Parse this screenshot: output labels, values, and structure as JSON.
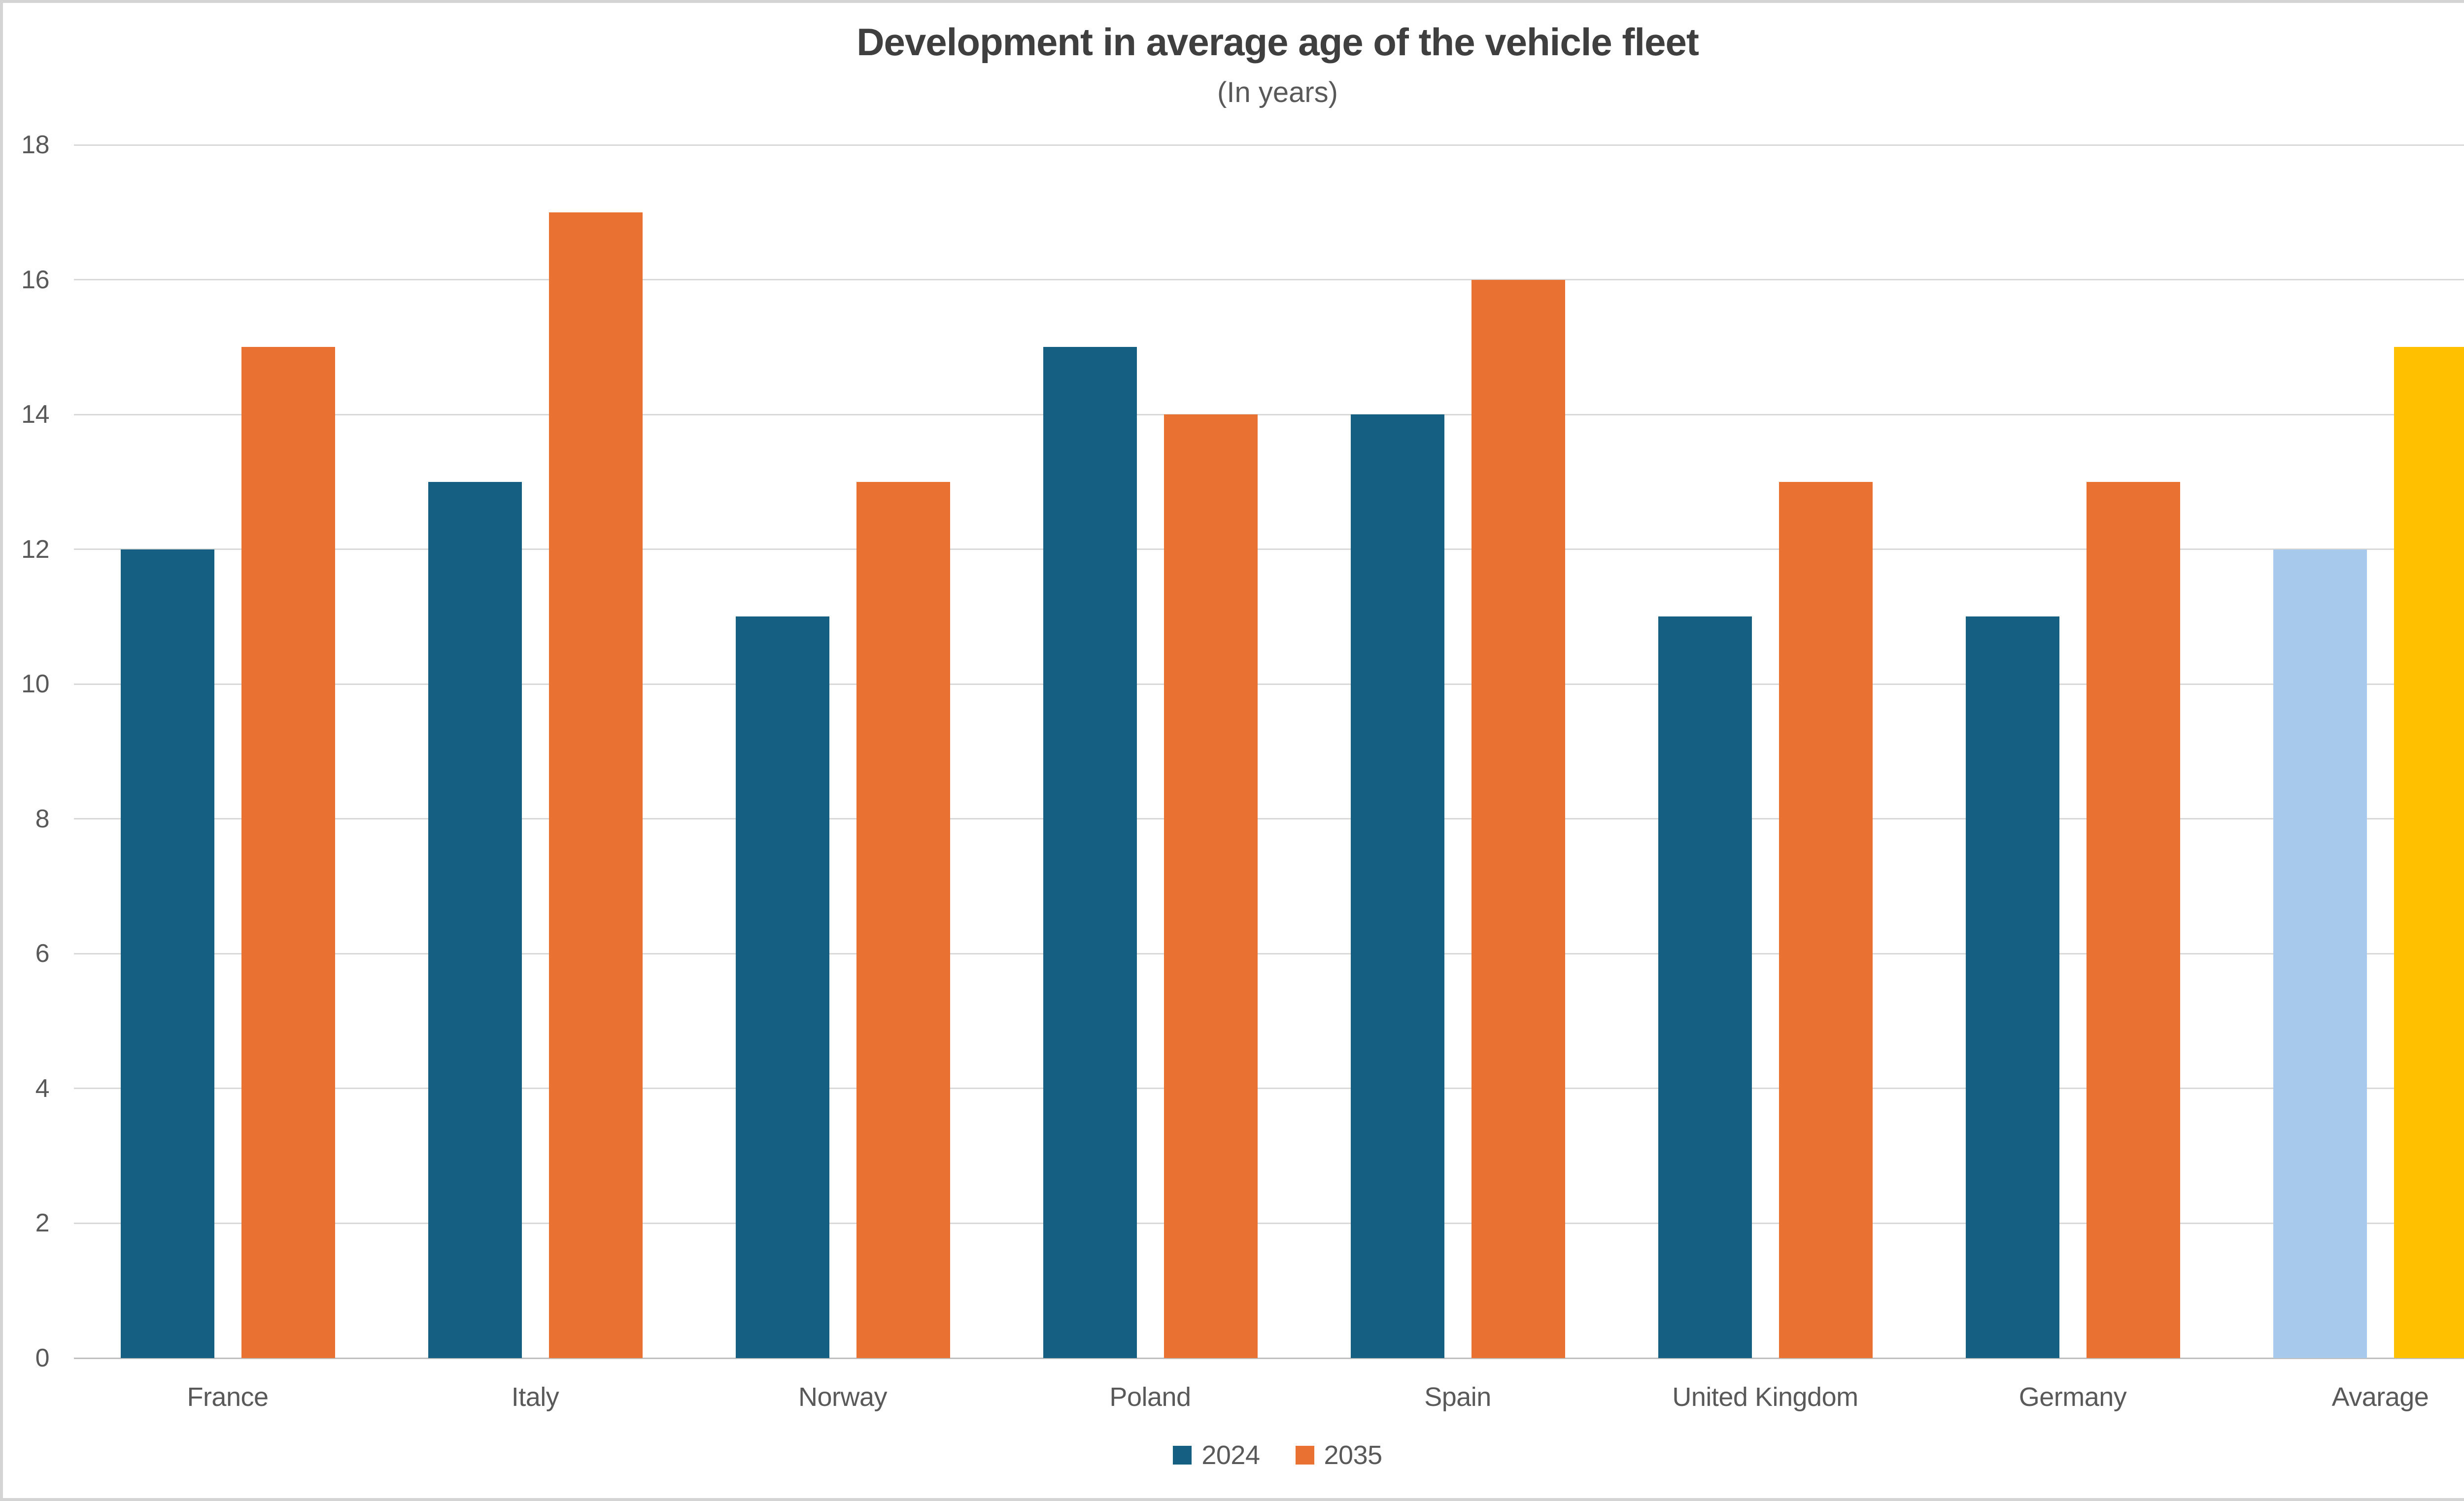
{
  "chart_data": {
    "type": "bar",
    "title": "Development in average age of the vehicle fleet",
    "subtitle": "(In years)",
    "xlabel": "",
    "ylabel": "",
    "categories": [
      "France",
      "Italy",
      "Norway",
      "Poland",
      "Spain",
      "United Kingdom",
      "Germany",
      "Avarage"
    ],
    "series": [
      {
        "name": "2024",
        "color": "#156082",
        "values": [
          12,
          13,
          11,
          15,
          14,
          11,
          11,
          12
        ]
      },
      {
        "name": "2035",
        "color": "#E97132",
        "values": [
          15,
          17,
          13,
          14,
          16,
          13,
          13,
          15
        ]
      }
    ],
    "highlight": {
      "category": "Avarage",
      "colors": [
        "#A6C9EC",
        "#FFC000"
      ]
    },
    "ylim": [
      0,
      18
    ],
    "ytick_step": 2,
    "yticks": [
      0,
      2,
      4,
      6,
      8,
      10,
      12,
      14,
      16,
      18
    ],
    "grid": true,
    "legend_position": "bottom",
    "colors": {
      "title_text": "#3f3f3f",
      "label_text": "#595959",
      "gridline": "#d9d9d9",
      "axis_line": "#bfbfbf",
      "page_border": "#d4d4d4",
      "background": "#ffffff"
    }
  }
}
